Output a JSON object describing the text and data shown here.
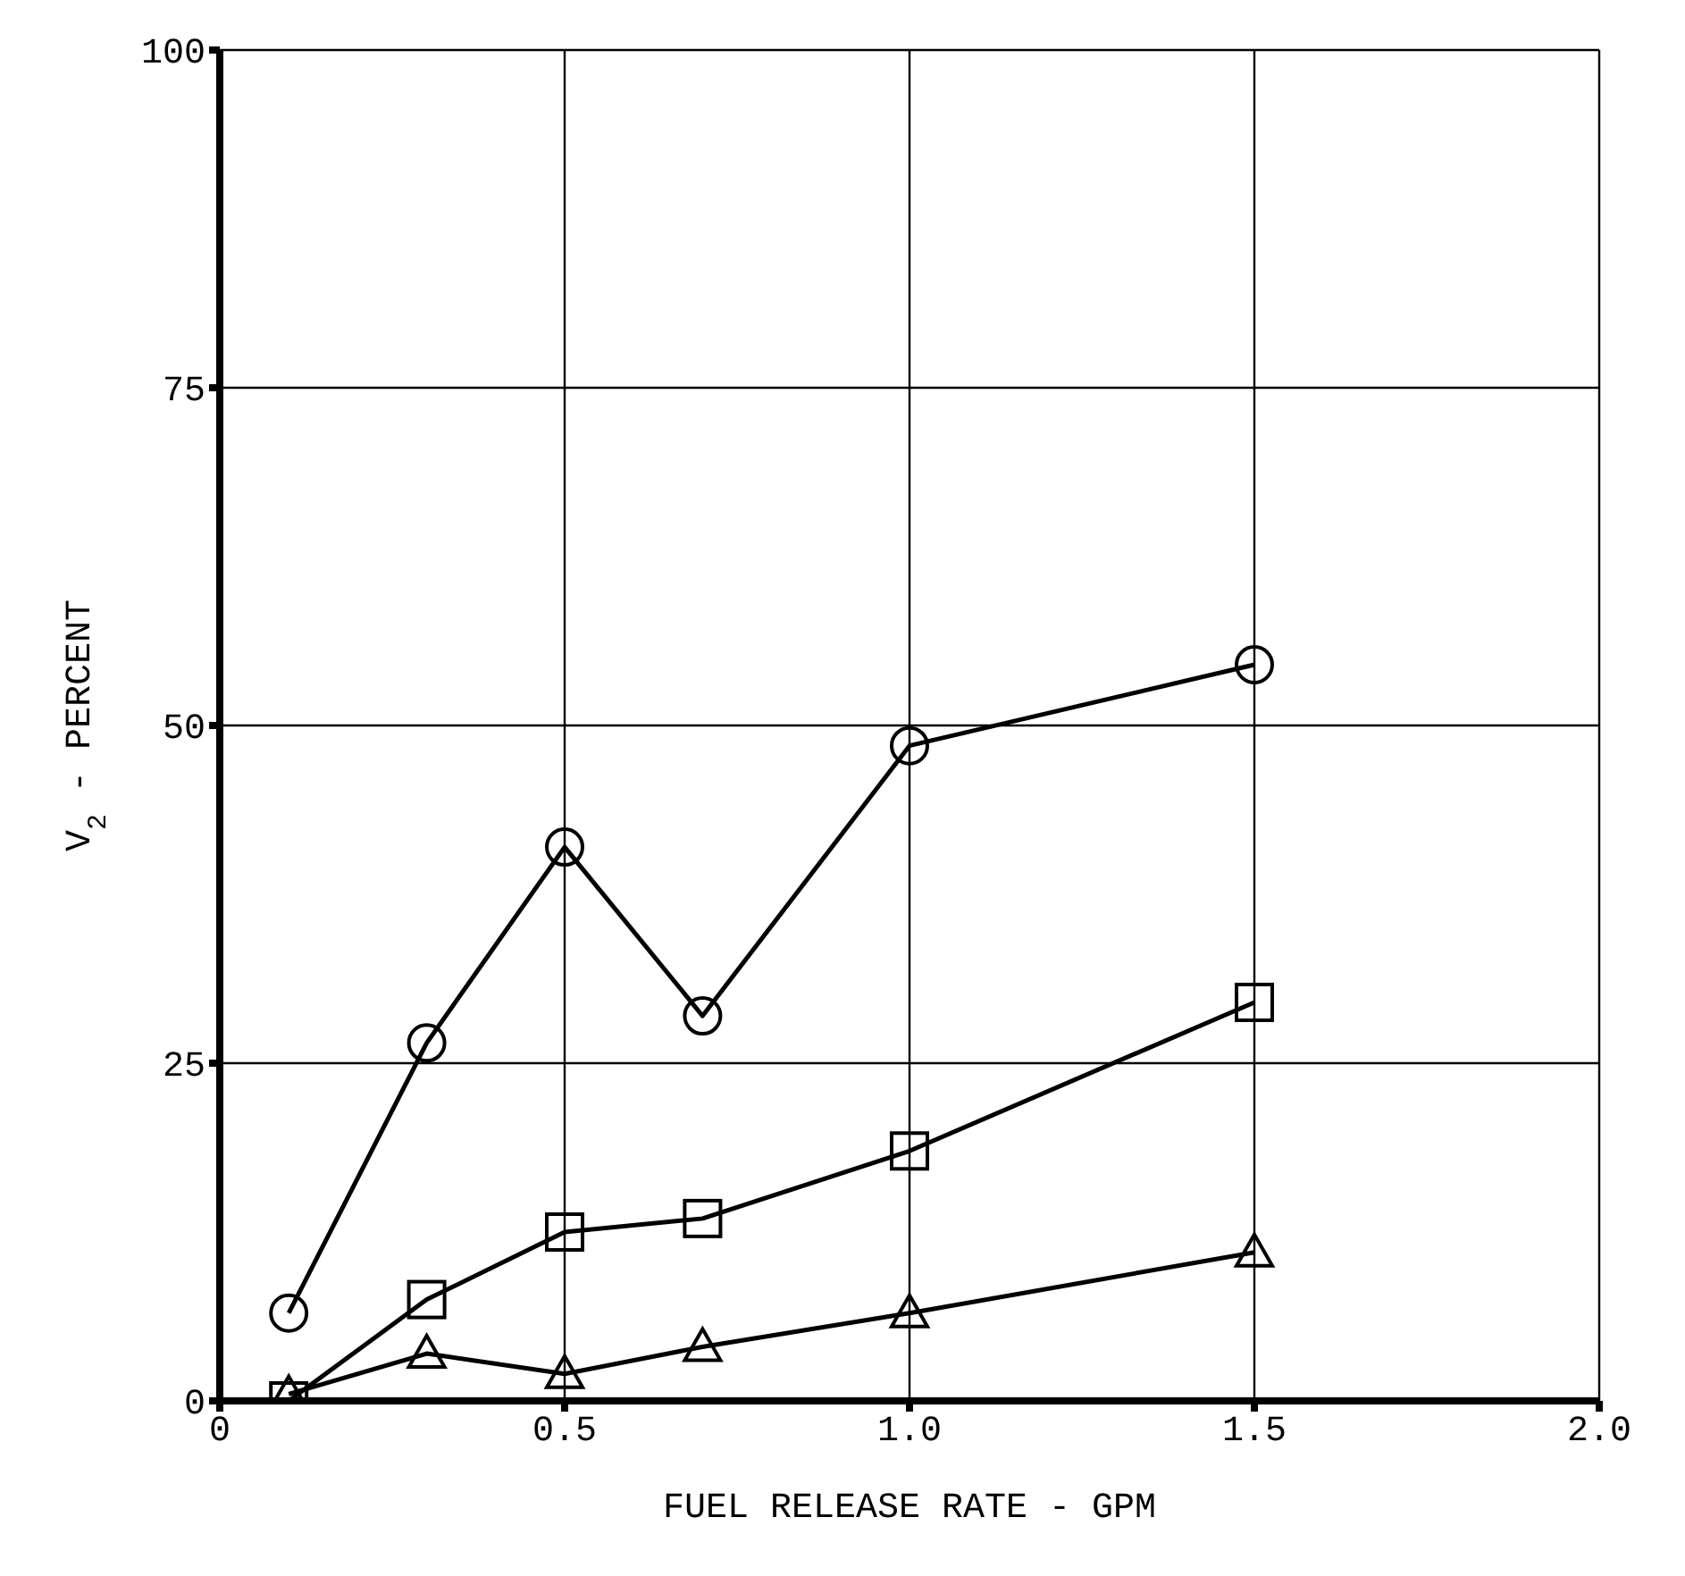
{
  "chart_data": {
    "type": "line",
    "xlabel": "FUEL RELEASE RATE - GPM",
    "ylabel": "V$_{2}$ - PERCENT",
    "xlim": [
      0,
      2
    ],
    "xticks": [
      0,
      0.5,
      {
        "value": 1,
        "label": "1.0"
      },
      1.5,
      {
        "value": 2,
        "label": "2.0"
      }
    ],
    "ylim": [
      0,
      100
    ],
    "yticks": [
      0,
      25,
      50,
      75,
      100
    ],
    "grid": true,
    "line_style": "solid",
    "series": [
      {
        "color": "#000000",
        "marker": "circle",
        "x": [
          0.1,
          0.3,
          0.5,
          0.7,
          1.0,
          1.5
        ],
        "values": [
          6.5,
          26.5,
          41,
          28.5,
          48.5,
          54.5
        ]
      },
      {
        "color": "#000000",
        "marker": "square",
        "x": [
          0.1,
          0.3,
          0.5,
          0.7,
          1.0,
          1.5
        ],
        "values": [
          0,
          7.5,
          12.5,
          13.5,
          18.5,
          29.5
        ]
      },
      {
        "color": "#000000",
        "marker": "triangle",
        "x": [
          0.1,
          0.3,
          0.5,
          0.7,
          1.0,
          1.5
        ],
        "values": [
          0.5,
          3.5,
          2,
          4,
          6.5,
          11
        ]
      }
    ]
  }
}
